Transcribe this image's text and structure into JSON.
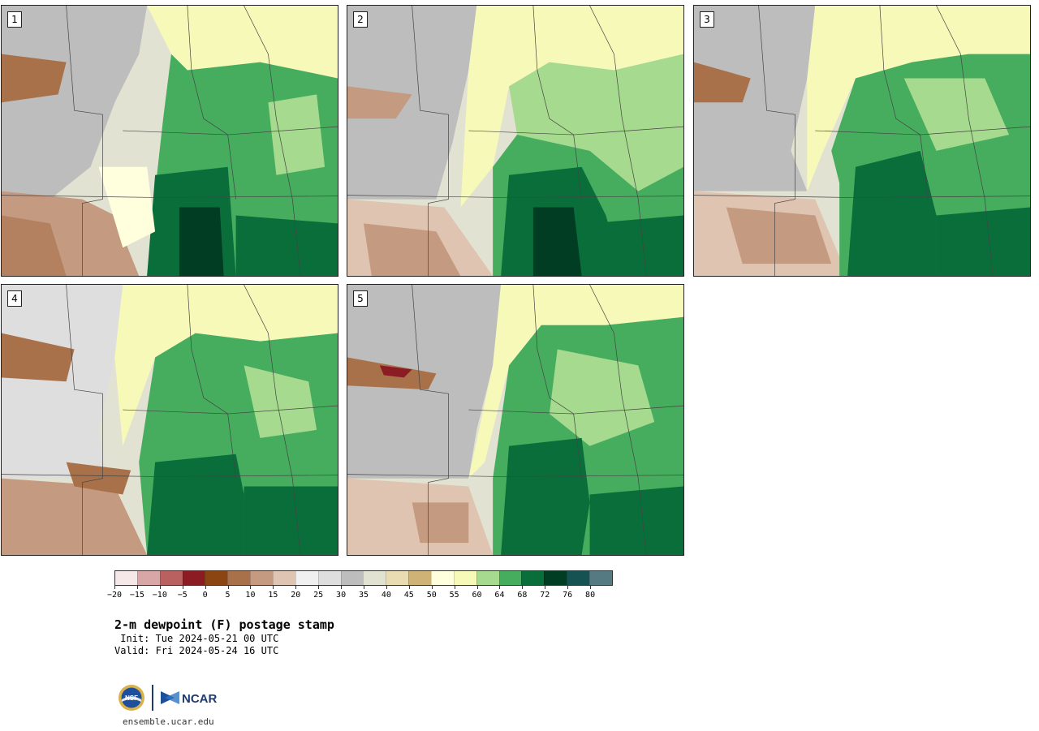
{
  "panels": [
    {
      "label": "1"
    },
    {
      "label": "2"
    },
    {
      "label": "3"
    },
    {
      "label": "4"
    },
    {
      "label": "5"
    }
  ],
  "colorbar": {
    "colors": [
      "#f6e8e8",
      "#d8a6a6",
      "#b96060",
      "#8c1c24",
      "#8a4512",
      "#a8714a",
      "#c49a80",
      "#e0c4b2",
      "#f0f0f0",
      "#dedede",
      "#bdbdbd",
      "#e2e2d2",
      "#e9dcb2",
      "#cfb376",
      "#ffffdd",
      "#f7f9b8",
      "#a6da8e",
      "#46ad5e",
      "#0a6e3b",
      "#003d22",
      "#165252",
      "#567a82"
    ],
    "tick_labels": [
      "−20",
      "−15",
      "−10",
      "−5",
      "0",
      "5",
      "10",
      "15",
      "20",
      "25",
      "30",
      "35",
      "40",
      "45",
      "50",
      "55",
      "60",
      "64",
      "68",
      "72",
      "76",
      "80"
    ]
  },
  "title": "2-m dewpoint (F) postage stamp",
  "init": " Init: Tue 2024-05-21 00 UTC",
  "valid": "Valid: Fri 2024-05-24 16 UTC",
  "logos": {
    "nsf_text": "NSF",
    "ncar_text": "NCAR"
  },
  "site": "ensemble.ucar.edu"
}
